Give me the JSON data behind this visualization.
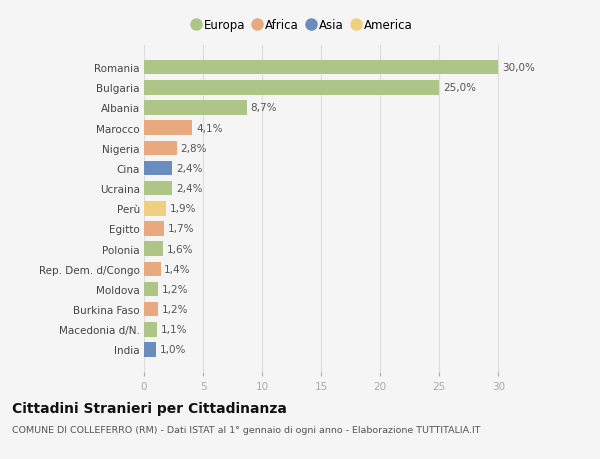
{
  "countries": [
    "Romania",
    "Bulgaria",
    "Albania",
    "Marocco",
    "Nigeria",
    "Cina",
    "Ucraina",
    "Perù",
    "Egitto",
    "Polonia",
    "Rep. Dem. d/Congo",
    "Moldova",
    "Burkina Faso",
    "Macedonia d/N.",
    "India"
  ],
  "values": [
    30.0,
    25.0,
    8.7,
    4.1,
    2.8,
    2.4,
    2.4,
    1.9,
    1.7,
    1.6,
    1.4,
    1.2,
    1.2,
    1.1,
    1.0
  ],
  "labels": [
    "30,0%",
    "25,0%",
    "8,7%",
    "4,1%",
    "2,8%",
    "2,4%",
    "2,4%",
    "1,9%",
    "1,7%",
    "1,6%",
    "1,4%",
    "1,2%",
    "1,2%",
    "1,1%",
    "1,0%"
  ],
  "continents": [
    "Europa",
    "Europa",
    "Europa",
    "Africa",
    "Africa",
    "Asia",
    "Europa",
    "America",
    "Africa",
    "Europa",
    "Africa",
    "Europa",
    "Africa",
    "Europa",
    "Asia"
  ],
  "continent_colors": {
    "Europa": "#adc587",
    "Africa": "#e8a97e",
    "Asia": "#6b8cbf",
    "America": "#f0d080"
  },
  "legend_order": [
    "Europa",
    "Africa",
    "Asia",
    "America"
  ],
  "title": "Cittadini Stranieri per Cittadinanza",
  "subtitle": "COMUNE DI COLLEFERRO (RM) - Dati ISTAT al 1° gennaio di ogni anno - Elaborazione TUTTITALIA.IT",
  "xlim": [
    0,
    32
  ],
  "xticks": [
    0,
    5,
    10,
    15,
    20,
    25,
    30
  ],
  "background_color": "#f5f5f5",
  "bar_height": 0.72,
  "grid_color": "#dddddd",
  "label_fontsize": 7.5,
  "tick_fontsize": 7.5,
  "title_fontsize": 10,
  "subtitle_fontsize": 6.8
}
